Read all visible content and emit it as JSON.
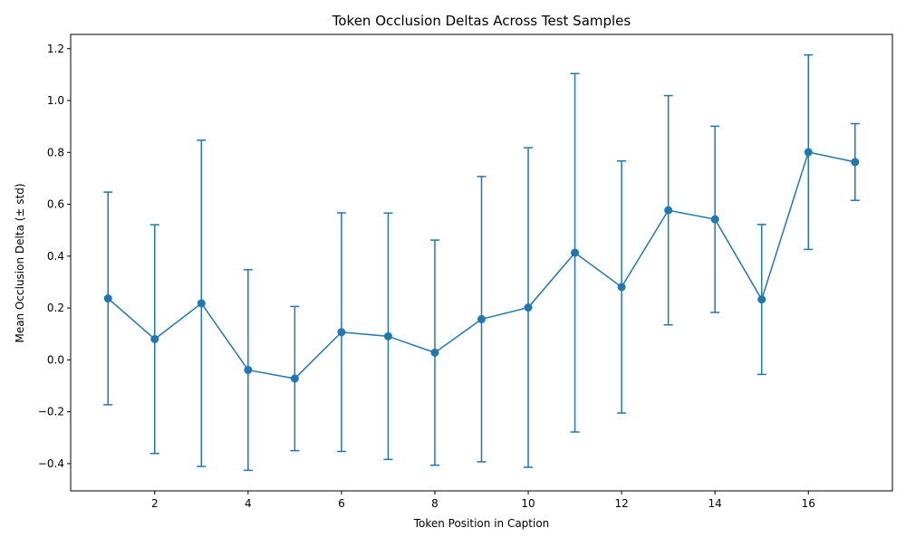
{
  "chart_data": {
    "type": "line",
    "title": "Token Occlusion Deltas Across Test Samples",
    "xlabel": "Token Position in Caption",
    "ylabel": "Mean Occlusion Delta (± std)",
    "xlim": [
      0.2,
      17.8
    ],
    "ylim": [
      -0.505,
      1.255
    ],
    "x_ticks": [
      2,
      4,
      6,
      8,
      10,
      12,
      14,
      16
    ],
    "x_tick_labels": [
      "2",
      "4",
      "6",
      "8",
      "10",
      "12",
      "14",
      "16"
    ],
    "y_ticks": [
      -0.4,
      -0.2,
      0.0,
      0.2,
      0.4,
      0.6,
      0.8,
      1.0,
      1.2
    ],
    "y_tick_labels": [
      "−0.4",
      "−0.2",
      "0.0",
      "0.2",
      "0.4",
      "0.6",
      "0.8",
      "1.0",
      "1.2"
    ],
    "grid": false,
    "series": [
      {
        "color": "#1f77b4",
        "marker": "circle",
        "x": [
          1,
          2,
          3,
          4,
          5,
          6,
          7,
          8,
          9,
          10,
          11,
          12,
          13,
          14,
          15,
          16,
          17
        ],
        "y": [
          0.237,
          0.08,
          0.218,
          -0.039,
          -0.072,
          0.107,
          0.091,
          0.028,
          0.157,
          0.202,
          0.413,
          0.281,
          0.577,
          0.542,
          0.233,
          0.801,
          0.763
        ],
        "error": [
          0.41,
          0.441,
          0.629,
          0.387,
          0.278,
          0.46,
          0.475,
          0.434,
          0.55,
          0.616,
          0.691,
          0.486,
          0.442,
          0.359,
          0.289,
          0.375,
          0.148
        ]
      }
    ]
  }
}
